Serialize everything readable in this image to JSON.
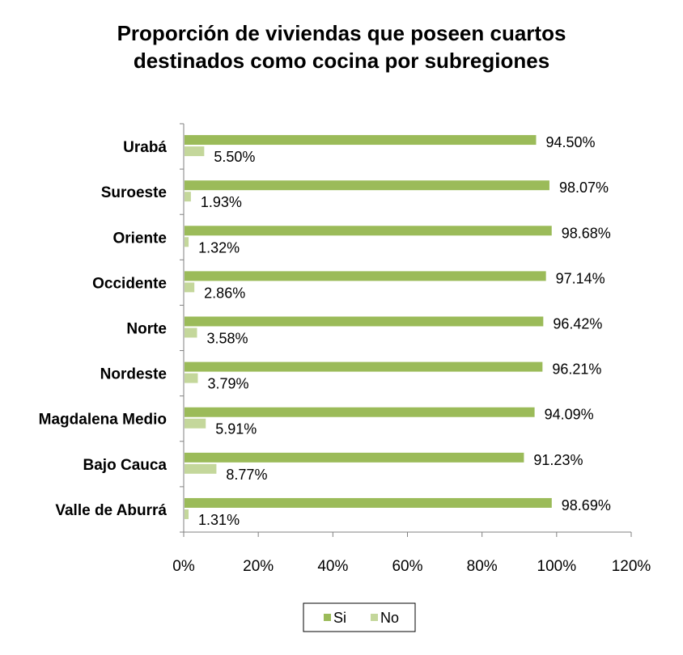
{
  "chart_data": {
    "type": "bar",
    "orientation": "horizontal",
    "title": "Proporción de viviendas que poseen cuartos destinados como cocina por subregiones",
    "title_lines": [
      "Proporción de viviendas que poseen cuartos",
      "destinados como cocina por subregiones"
    ],
    "categories": [
      "Urabá",
      "Suroeste",
      "Oriente",
      "Occidente",
      "Norte",
      "Nordeste",
      "Magdalena Medio",
      "Bajo Cauca",
      "Valle de Aburrá"
    ],
    "series": [
      {
        "name": "Si",
        "color": "#9BBB59",
        "values": [
          94.5,
          98.07,
          98.68,
          97.14,
          96.42,
          96.21,
          94.09,
          91.23,
          98.69
        ],
        "labels": [
          "94.50%",
          "98.07%",
          "98.68%",
          "97.14%",
          "96.42%",
          "96.21%",
          "94.09%",
          "91.23%",
          "98.69%"
        ]
      },
      {
        "name": "No",
        "color": "#C4D79B",
        "values": [
          5.5,
          1.93,
          1.32,
          2.86,
          3.58,
          3.79,
          5.91,
          8.77,
          1.31
        ],
        "labels": [
          "5.50%",
          "1.93%",
          "1.32%",
          "2.86%",
          "3.58%",
          "3.79%",
          "5.91%",
          "8.77%",
          "1.31%"
        ]
      }
    ],
    "xlim": [
      0,
      120
    ],
    "xticks": [
      0,
      20,
      40,
      60,
      80,
      100,
      120
    ],
    "xtick_labels": [
      "0%",
      "20%",
      "40%",
      "60%",
      "80%",
      "100%",
      "120%"
    ],
    "xlabel": "",
    "ylabel": "",
    "grid": false,
    "legend_position": "bottom"
  }
}
